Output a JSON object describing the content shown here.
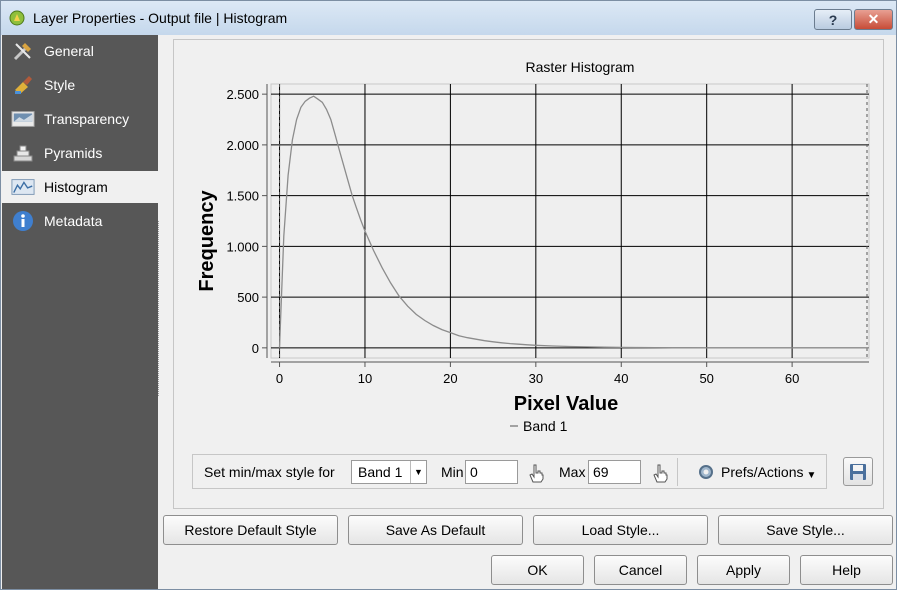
{
  "window": {
    "title": "Layer Properties - Output file | Histogram",
    "help_label": "?",
    "close_label": "✕"
  },
  "sidebar": {
    "items": [
      {
        "label": "General",
        "icon": "tools-icon"
      },
      {
        "label": "Style",
        "icon": "paint-icon"
      },
      {
        "label": "Transparency",
        "icon": "transparency-icon"
      },
      {
        "label": "Pyramids",
        "icon": "pyramids-icon"
      },
      {
        "label": "Histogram",
        "icon": "histogram-icon",
        "active": true
      },
      {
        "label": "Metadata",
        "icon": "info-icon"
      }
    ]
  },
  "chart_data": {
    "type": "line",
    "title": "Raster Histogram",
    "xlabel": "Pixel Value",
    "ylabel": "Frequency",
    "xlim": [
      -1,
      69
    ],
    "ylim": [
      -100,
      2600
    ],
    "x_ticks": [
      0,
      10,
      20,
      30,
      40,
      50,
      60
    ],
    "y_ticks": [
      0,
      500,
      1000,
      1500,
      2000,
      2500
    ],
    "y_tick_labels": [
      "0",
      "500",
      "1.000",
      "1.500",
      "2.000",
      "2.500"
    ],
    "grid": true,
    "legend": "bottom",
    "min_marker": 0,
    "max_marker": 69,
    "series": [
      {
        "name": "Band 1",
        "color": "#8c8c8c",
        "x": [
          0,
          0.5,
          1,
          1.5,
          2,
          2.5,
          3,
          3.5,
          4,
          4.5,
          5,
          5.5,
          6,
          6.5,
          7,
          7.5,
          8,
          8.5,
          9,
          9.5,
          10,
          11,
          12,
          13,
          14,
          15,
          16,
          17,
          18,
          19,
          20,
          21,
          22,
          23,
          24,
          25,
          26,
          27,
          28,
          29,
          30,
          32,
          34,
          36,
          38,
          40,
          42,
          44,
          46,
          48,
          50,
          55,
          60,
          65,
          69
        ],
        "values": [
          0,
          1100,
          1700,
          2050,
          2250,
          2370,
          2430,
          2460,
          2480,
          2450,
          2420,
          2350,
          2250,
          2100,
          1950,
          1800,
          1650,
          1500,
          1380,
          1260,
          1150,
          960,
          790,
          640,
          510,
          410,
          330,
          270,
          220,
          180,
          150,
          120,
          100,
          85,
          70,
          60,
          50,
          42,
          36,
          30,
          25,
          18,
          13,
          9,
          6,
          4,
          3,
          2,
          1,
          1,
          0,
          0,
          0,
          0,
          0
        ]
      }
    ]
  },
  "controls": {
    "style_label": "Set min/max style for",
    "band_value": "Band 1",
    "min_label": "Min",
    "min_value": "0",
    "max_label": "Max",
    "max_value": "69",
    "prefs_label": "Prefs/Actions"
  },
  "buttons": {
    "restore": "Restore Default Style",
    "save_default": "Save As Default",
    "load_style": "Load Style...",
    "save_style": "Save Style...",
    "ok": "OK",
    "cancel": "Cancel",
    "apply": "Apply",
    "help": "Help"
  }
}
